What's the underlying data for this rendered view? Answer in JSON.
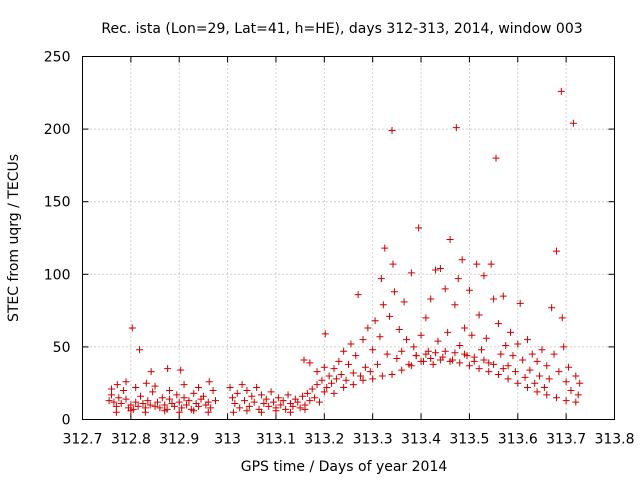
{
  "chart_data": {
    "type": "scatter",
    "title": "Rec. ista (Lon=29, Lat=41, h=HE), days 312-313, 2014, window 003",
    "xlabel": "GPS time / Days of year 2014",
    "ylabel": "STEC from uqrg / TECUs",
    "xlim": [
      312.7,
      313.8
    ],
    "ylim": [
      0,
      250
    ],
    "xticks": [
      "312.7",
      "312.8",
      "312.9",
      "313",
      "313.1",
      "313.2",
      "313.3",
      "313.4",
      "313.5",
      "313.6",
      "313.7",
      "313.8"
    ],
    "yticks": [
      "0",
      "50",
      "100",
      "150",
      "200",
      "250"
    ],
    "grid": true,
    "marker": "plus",
    "color": "#cc0000",
    "points": [
      [
        312.755,
        13
      ],
      [
        312.76,
        17
      ],
      [
        312.765,
        12
      ],
      [
        312.77,
        9
      ],
      [
        312.775,
        15
      ],
      [
        312.78,
        11
      ],
      [
        312.785,
        20
      ],
      [
        312.79,
        14
      ],
      [
        312.795,
        8
      ],
      [
        312.8,
        10
      ],
      [
        312.805,
        7
      ],
      [
        312.81,
        12
      ],
      [
        312.815,
        9
      ],
      [
        312.82,
        16
      ],
      [
        312.825,
        11
      ],
      [
        312.83,
        8
      ],
      [
        312.835,
        13
      ],
      [
        312.84,
        10
      ],
      [
        312.845,
        19
      ],
      [
        312.85,
        9
      ],
      [
        312.855,
        12
      ],
      [
        312.86,
        8
      ],
      [
        312.865,
        15
      ],
      [
        312.87,
        10
      ],
      [
        312.875,
        7
      ],
      [
        312.88,
        14
      ],
      [
        312.885,
        11
      ],
      [
        312.89,
        9
      ],
      [
        312.895,
        17
      ],
      [
        312.9,
        12
      ],
      [
        312.905,
        8
      ],
      [
        312.91,
        15
      ],
      [
        312.915,
        10
      ],
      [
        312.92,
        13
      ],
      [
        312.925,
        7
      ],
      [
        312.93,
        18
      ],
      [
        312.935,
        11
      ],
      [
        312.94,
        9
      ],
      [
        312.945,
        14
      ],
      [
        312.95,
        16
      ],
      [
        312.955,
        10
      ],
      [
        312.96,
        12
      ],
      [
        312.965,
        8
      ],
      [
        312.97,
        20
      ],
      [
        312.975,
        13
      ],
      [
        312.76,
        21
      ],
      [
        312.772,
        24
      ],
      [
        312.79,
        26
      ],
      [
        312.81,
        22
      ],
      [
        312.832,
        25
      ],
      [
        312.85,
        23
      ],
      [
        312.88,
        20
      ],
      [
        312.91,
        24
      ],
      [
        312.94,
        22
      ],
      [
        312.962,
        26
      ],
      [
        312.77,
        5
      ],
      [
        312.8,
        6
      ],
      [
        312.83,
        5
      ],
      [
        312.87,
        6
      ],
      [
        312.9,
        5
      ],
      [
        312.93,
        6
      ],
      [
        312.96,
        5
      ],
      [
        312.803,
        63
      ],
      [
        312.818,
        48
      ],
      [
        312.842,
        33
      ],
      [
        312.876,
        35
      ],
      [
        312.903,
        34
      ],
      [
        313.005,
        22
      ],
      [
        313.01,
        15
      ],
      [
        313.015,
        11
      ],
      [
        313.02,
        18
      ],
      [
        313.025,
        8
      ],
      [
        313.03,
        24
      ],
      [
        313.035,
        13
      ],
      [
        313.04,
        20
      ],
      [
        313.045,
        9
      ],
      [
        313.05,
        16
      ],
      [
        313.055,
        12
      ],
      [
        313.06,
        22
      ],
      [
        313.065,
        7
      ],
      [
        313.07,
        17
      ],
      [
        313.075,
        11
      ],
      [
        313.08,
        14
      ],
      [
        313.085,
        9
      ],
      [
        313.09,
        19
      ],
      [
        313.095,
        12
      ],
      [
        313.1,
        8
      ],
      [
        313.105,
        15
      ],
      [
        313.11,
        10
      ],
      [
        313.115,
        13
      ],
      [
        313.12,
        7
      ],
      [
        313.125,
        17
      ],
      [
        313.13,
        11
      ],
      [
        313.135,
        9
      ],
      [
        313.14,
        14
      ],
      [
        313.145,
        12
      ],
      [
        313.15,
        8
      ],
      [
        313.155,
        16
      ],
      [
        313.16,
        10
      ],
      [
        313.165,
        18
      ],
      [
        313.17,
        13
      ],
      [
        313.175,
        21
      ],
      [
        313.18,
        15
      ],
      [
        313.185,
        24
      ],
      [
        313.19,
        12
      ],
      [
        313.195,
        27
      ],
      [
        313.2,
        19
      ],
      [
        313.012,
        5
      ],
      [
        313.04,
        6
      ],
      [
        313.07,
        5
      ],
      [
        313.1,
        6
      ],
      [
        313.13,
        5
      ],
      [
        313.16,
        7
      ],
      [
        313.158,
        41
      ],
      [
        313.17,
        39
      ],
      [
        313.185,
        33
      ],
      [
        313.2,
        36
      ],
      [
        313.202,
        59
      ],
      [
        313.205,
        22
      ],
      [
        313.21,
        30
      ],
      [
        313.215,
        25
      ],
      [
        313.22,
        35
      ],
      [
        313.225,
        28
      ],
      [
        313.23,
        40
      ],
      [
        313.235,
        31
      ],
      [
        313.24,
        47
      ],
      [
        313.245,
        27
      ],
      [
        313.25,
        38
      ],
      [
        313.255,
        52
      ],
      [
        313.26,
        32
      ],
      [
        313.265,
        44
      ],
      [
        313.27,
        86
      ],
      [
        313.275,
        30
      ],
      [
        313.28,
        55
      ],
      [
        313.285,
        36
      ],
      [
        313.29,
        63
      ],
      [
        313.295,
        33
      ],
      [
        313.3,
        48
      ],
      [
        313.305,
        68
      ],
      [
        313.31,
        38
      ],
      [
        313.315,
        57
      ],
      [
        313.318,
        97
      ],
      [
        313.322,
        79
      ],
      [
        313.325,
        118
      ],
      [
        313.33,
        45
      ],
      [
        313.335,
        71
      ],
      [
        313.34,
        199
      ],
      [
        313.342,
        107
      ],
      [
        313.345,
        88
      ],
      [
        313.35,
        42
      ],
      [
        313.355,
        62
      ],
      [
        313.36,
        47
      ],
      [
        313.365,
        81
      ],
      [
        313.37,
        55
      ],
      [
        313.375,
        38
      ],
      [
        313.38,
        101
      ],
      [
        313.385,
        50
      ],
      [
        313.39,
        44
      ],
      [
        313.395,
        132
      ],
      [
        313.4,
        58
      ],
      [
        313.405,
        40
      ],
      [
        313.41,
        70
      ],
      [
        313.415,
        47
      ],
      [
        313.42,
        83
      ],
      [
        313.425,
        38
      ],
      [
        313.43,
        103
      ],
      [
        313.435,
        54
      ],
      [
        313.44,
        104
      ],
      [
        313.445,
        43
      ],
      [
        313.45,
        90
      ],
      [
        313.455,
        60
      ],
      [
        313.46,
        124
      ],
      [
        313.465,
        41
      ],
      [
        313.47,
        79
      ],
      [
        313.473,
        201
      ],
      [
        313.477,
        97
      ],
      [
        313.48,
        51
      ],
      [
        313.485,
        110
      ],
      [
        313.49,
        63
      ],
      [
        313.495,
        44
      ],
      [
        313.5,
        89
      ],
      [
        313.505,
        58
      ],
      [
        313.51,
        40
      ],
      [
        313.515,
        107
      ],
      [
        313.52,
        72
      ],
      [
        313.525,
        48
      ],
      [
        313.53,
        99
      ],
      [
        313.535,
        56
      ],
      [
        313.54,
        39
      ],
      [
        313.545,
        107
      ],
      [
        313.55,
        83
      ],
      [
        313.555,
        180
      ],
      [
        313.56,
        66
      ],
      [
        313.565,
        45
      ],
      [
        313.57,
        85
      ],
      [
        313.575,
        51
      ],
      [
        313.58,
        37
      ],
      [
        313.585,
        60
      ],
      [
        313.59,
        44
      ],
      [
        313.595,
        33
      ],
      [
        313.6,
        52
      ],
      [
        313.605,
        80
      ],
      [
        313.61,
        41
      ],
      [
        313.615,
        29
      ],
      [
        313.62,
        55
      ],
      [
        313.625,
        34
      ],
      [
        313.63,
        45
      ],
      [
        313.635,
        25
      ],
      [
        313.64,
        40
      ],
      [
        313.645,
        30
      ],
      [
        313.65,
        48
      ],
      [
        313.655,
        22
      ],
      [
        313.66,
        37
      ],
      [
        313.665,
        28
      ],
      [
        313.67,
        77
      ],
      [
        313.675,
        45
      ],
      [
        313.68,
        116
      ],
      [
        313.685,
        33
      ],
      [
        313.69,
        226
      ],
      [
        313.692,
        70
      ],
      [
        313.695,
        50
      ],
      [
        313.7,
        26
      ],
      [
        313.705,
        36
      ],
      [
        313.71,
        20
      ],
      [
        313.715,
        204
      ],
      [
        313.72,
        30
      ],
      [
        313.725,
        17
      ],
      [
        313.728,
        25
      ],
      [
        313.22,
        18
      ],
      [
        313.24,
        22
      ],
      [
        313.26,
        24
      ],
      [
        313.28,
        27
      ],
      [
        313.3,
        28
      ],
      [
        313.32,
        30
      ],
      [
        313.34,
        31
      ],
      [
        313.36,
        34
      ],
      [
        313.38,
        37
      ],
      [
        313.4,
        40
      ],
      [
        313.42,
        42
      ],
      [
        313.44,
        41
      ],
      [
        313.46,
        40
      ],
      [
        313.48,
        39
      ],
      [
        313.5,
        37
      ],
      [
        313.52,
        35
      ],
      [
        313.54,
        33
      ],
      [
        313.56,
        31
      ],
      [
        313.58,
        28
      ],
      [
        313.6,
        25
      ],
      [
        313.62,
        22
      ],
      [
        313.64,
        19
      ],
      [
        313.66,
        17
      ],
      [
        313.68,
        15
      ],
      [
        313.7,
        13
      ],
      [
        313.72,
        12
      ],
      [
        313.39,
        44
      ],
      [
        313.41,
        45
      ],
      [
        313.43,
        46
      ],
      [
        313.45,
        47
      ],
      [
        313.47,
        46
      ],
      [
        313.49,
        45
      ],
      [
        313.51,
        43
      ],
      [
        313.53,
        41
      ],
      [
        313.55,
        38
      ],
      [
        313.57,
        35
      ]
    ]
  }
}
